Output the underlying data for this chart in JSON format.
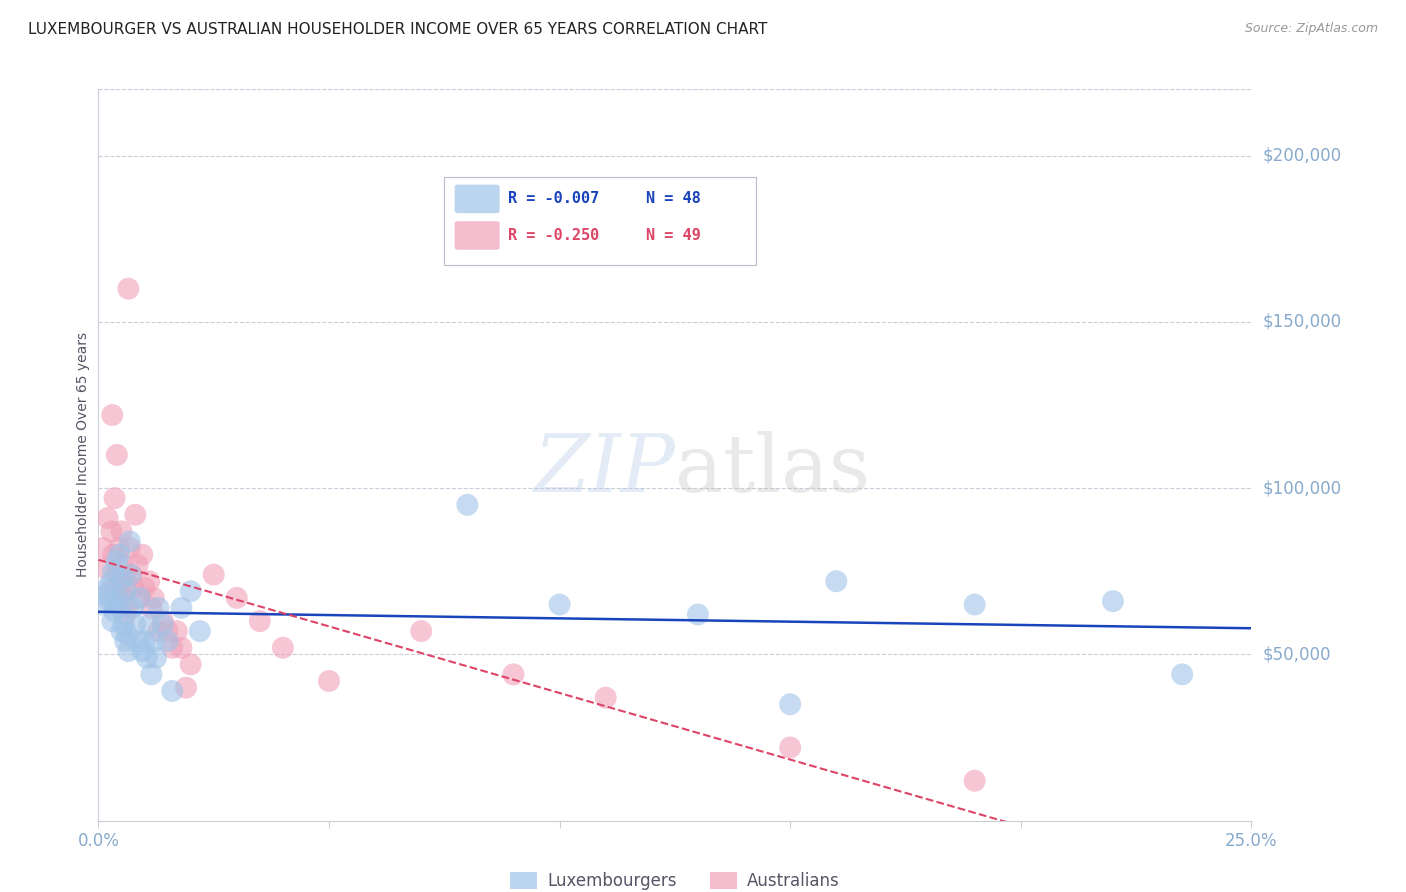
{
  "title": "LUXEMBOURGER VS AUSTRALIAN HOUSEHOLDER INCOME OVER 65 YEARS CORRELATION CHART",
  "source": "Source: ZipAtlas.com",
  "ylabel": "Householder Income Over 65 years",
  "xlim": [
    0,
    0.25
  ],
  "ylim": [
    0,
    220000
  ],
  "xticks": [
    0.0,
    0.05,
    0.1,
    0.15,
    0.2,
    0.25
  ],
  "ytick_vals": [
    50000,
    100000,
    150000,
    200000
  ],
  "ytick_labels": [
    "$50,000",
    "$100,000",
    "$150,000",
    "$200,000"
  ],
  "background_color": "#ffffff",
  "grid_color": "#ccccdd",
  "title_color": "#222222",
  "axis_color": "#88aacc",
  "watermark_text": "ZIPatlas",
  "lux_color": "#a0c4e8",
  "aus_color": "#f0a0b8",
  "lux_line_color": "#1a44bb",
  "aus_line_color": "#dd4466",
  "lux_R": "-0.007",
  "lux_N": "48",
  "aus_R": "-0.250",
  "aus_N": "49",
  "lux_x": [
    0.001,
    0.0015,
    0.002,
    0.0025,
    0.0028,
    0.003,
    0.0032,
    0.0035,
    0.0038,
    0.004,
    0.0042,
    0.0045,
    0.0048,
    0.005,
    0.0052,
    0.0055,
    0.0058,
    0.006,
    0.0063,
    0.0065,
    0.0068,
    0.007,
    0.0075,
    0.008,
    0.0085,
    0.009,
    0.0095,
    0.01,
    0.0105,
    0.011,
    0.0115,
    0.012,
    0.0125,
    0.013,
    0.014,
    0.015,
    0.016,
    0.018,
    0.02,
    0.022,
    0.08,
    0.1,
    0.13,
    0.15,
    0.16,
    0.19,
    0.22,
    0.235
  ],
  "lux_y": [
    65000,
    68000,
    70000,
    66000,
    72000,
    60000,
    75000,
    63000,
    65000,
    78000,
    67000,
    80000,
    64000,
    57000,
    73000,
    59000,
    54000,
    69000,
    56000,
    51000,
    84000,
    74000,
    64000,
    59000,
    54000,
    67000,
    51000,
    54000,
    49000,
    59000,
    44000,
    54000,
    49000,
    64000,
    59000,
    54000,
    39000,
    64000,
    69000,
    57000,
    95000,
    65000,
    62000,
    35000,
    72000,
    65000,
    66000,
    44000
  ],
  "aus_x": [
    0.001,
    0.0015,
    0.002,
    0.0025,
    0.0028,
    0.003,
    0.0032,
    0.0035,
    0.0038,
    0.004,
    0.0042,
    0.0045,
    0.0048,
    0.005,
    0.0052,
    0.0055,
    0.0058,
    0.006,
    0.0063,
    0.0065,
    0.0068,
    0.0072,
    0.0075,
    0.008,
    0.0085,
    0.009,
    0.0095,
    0.01,
    0.011,
    0.0115,
    0.012,
    0.013,
    0.014,
    0.015,
    0.016,
    0.017,
    0.018,
    0.019,
    0.02,
    0.025,
    0.03,
    0.035,
    0.04,
    0.05,
    0.07,
    0.09,
    0.11,
    0.15,
    0.19
  ],
  "aus_y": [
    82000,
    76000,
    91000,
    69000,
    87000,
    122000,
    80000,
    97000,
    74000,
    110000,
    67000,
    82000,
    72000,
    87000,
    77000,
    67000,
    62000,
    72000,
    64000,
    160000,
    82000,
    74000,
    70000,
    92000,
    77000,
    67000,
    80000,
    70000,
    72000,
    64000,
    67000,
    57000,
    60000,
    57000,
    52000,
    57000,
    52000,
    40000,
    47000,
    74000,
    67000,
    60000,
    52000,
    42000,
    57000,
    44000,
    37000,
    22000,
    12000
  ]
}
